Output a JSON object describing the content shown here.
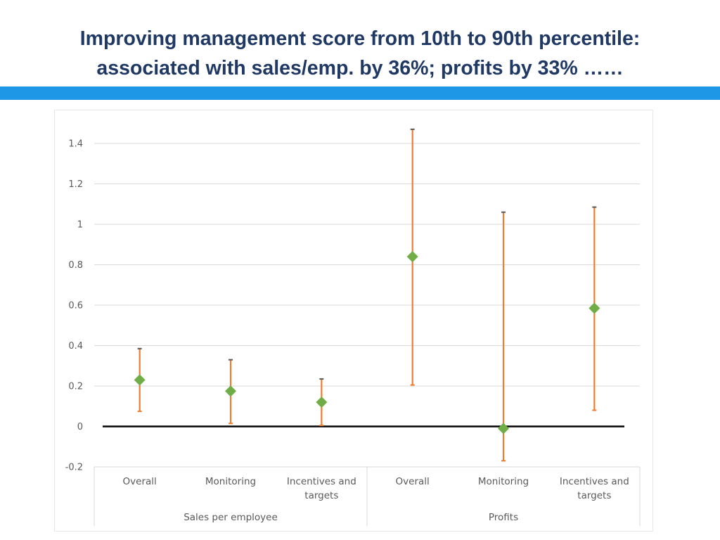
{
  "title": {
    "line1": "Improving management score from 10th to 90th percentile:",
    "line2": "associated with sales/emp. by 36%; profits by 33% ……"
  },
  "colors": {
    "title": "#1f3864",
    "band": "#1e98e6",
    "errorbar": "#ed7d31",
    "marker": "#70ad47",
    "gridline": "#d9d9d9",
    "zeroline": "#000000"
  },
  "chart_data": {
    "type": "scatter",
    "title": "",
    "xlabel": "",
    "ylabel": "",
    "ylim": [
      -0.2,
      1.4
    ],
    "yticks": [
      -0.2,
      0,
      0.2,
      0.4,
      0.6,
      0.8,
      1,
      1.2,
      1.4
    ],
    "ytick_labels": [
      "-0.2",
      "0",
      "0.2",
      "0.4",
      "0.6",
      "0.8",
      "1",
      "1.2",
      "1.4"
    ],
    "grid": true,
    "groups": [
      {
        "name": "Sales per employee",
        "categories": [
          [
            "Overall"
          ],
          [
            "Monitoring"
          ],
          [
            "Incentives and",
            "targets"
          ]
        ]
      },
      {
        "name": "Profits",
        "categories": [
          [
            "Overall"
          ],
          [
            "Monitoring"
          ],
          [
            "Incentives and",
            "targets"
          ]
        ]
      }
    ],
    "points": [
      {
        "group": "Sales per employee",
        "category": "Overall",
        "value": 0.23,
        "lower": 0.075,
        "upper": 0.385
      },
      {
        "group": "Sales per employee",
        "category": "Monitoring",
        "value": 0.175,
        "lower": 0.015,
        "upper": 0.33
      },
      {
        "group": "Sales per employee",
        "category": "Incentives and targets",
        "value": 0.12,
        "lower": 0.005,
        "upper": 0.235
      },
      {
        "group": "Profits",
        "category": "Overall",
        "value": 0.84,
        "lower": 0.205,
        "upper": 1.47
      },
      {
        "group": "Profits",
        "category": "Monitoring",
        "value": -0.01,
        "lower": -0.17,
        "upper": 1.06
      },
      {
        "group": "Profits",
        "category": "Incentives and targets",
        "value": 0.585,
        "lower": 0.08,
        "upper": 1.085
      }
    ]
  }
}
